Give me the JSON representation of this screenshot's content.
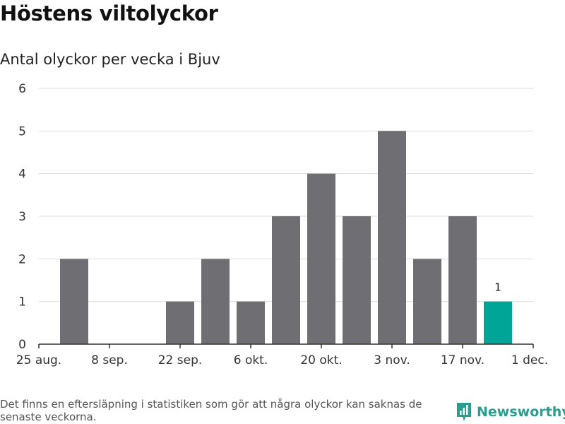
{
  "title": "Höstens viltolyckor",
  "subtitle": "Antal olyckor per vecka i Bjuv",
  "footnote": "Det finns en eftersläpning i statistiken som gör att några olyckor kan saknas de senaste veckorna.",
  "brand": {
    "name": "Newsworthy",
    "icon": "newsworthy-logo-icon",
    "color": "#2a9d8f"
  },
  "colors": {
    "bar": "#6f6e73",
    "highlight": "#00a598",
    "grid": "#dddddd",
    "axis": "#333333"
  },
  "chart_data": {
    "type": "bar",
    "title": "Höstens viltolyckor",
    "subtitle": "Antal olyckor per vecka i Bjuv",
    "xlabel": "",
    "ylabel": "",
    "ylim": [
      0,
      6
    ],
    "yticks": [
      0,
      1,
      2,
      3,
      4,
      5,
      6
    ],
    "grid": true,
    "legend": "none",
    "x_tick_labels": [
      "25 aug.",
      "8 sep.",
      "22 sep.",
      "6 okt.",
      "20 okt.",
      "3 nov.",
      "17 nov.",
      "1 dec."
    ],
    "values": [
      2,
      0,
      0,
      1,
      2,
      1,
      3,
      4,
      3,
      5,
      2,
      3,
      1
    ],
    "highlight_index": 12,
    "data_labels": [
      {
        "index": 12,
        "text": "1"
      }
    ]
  }
}
